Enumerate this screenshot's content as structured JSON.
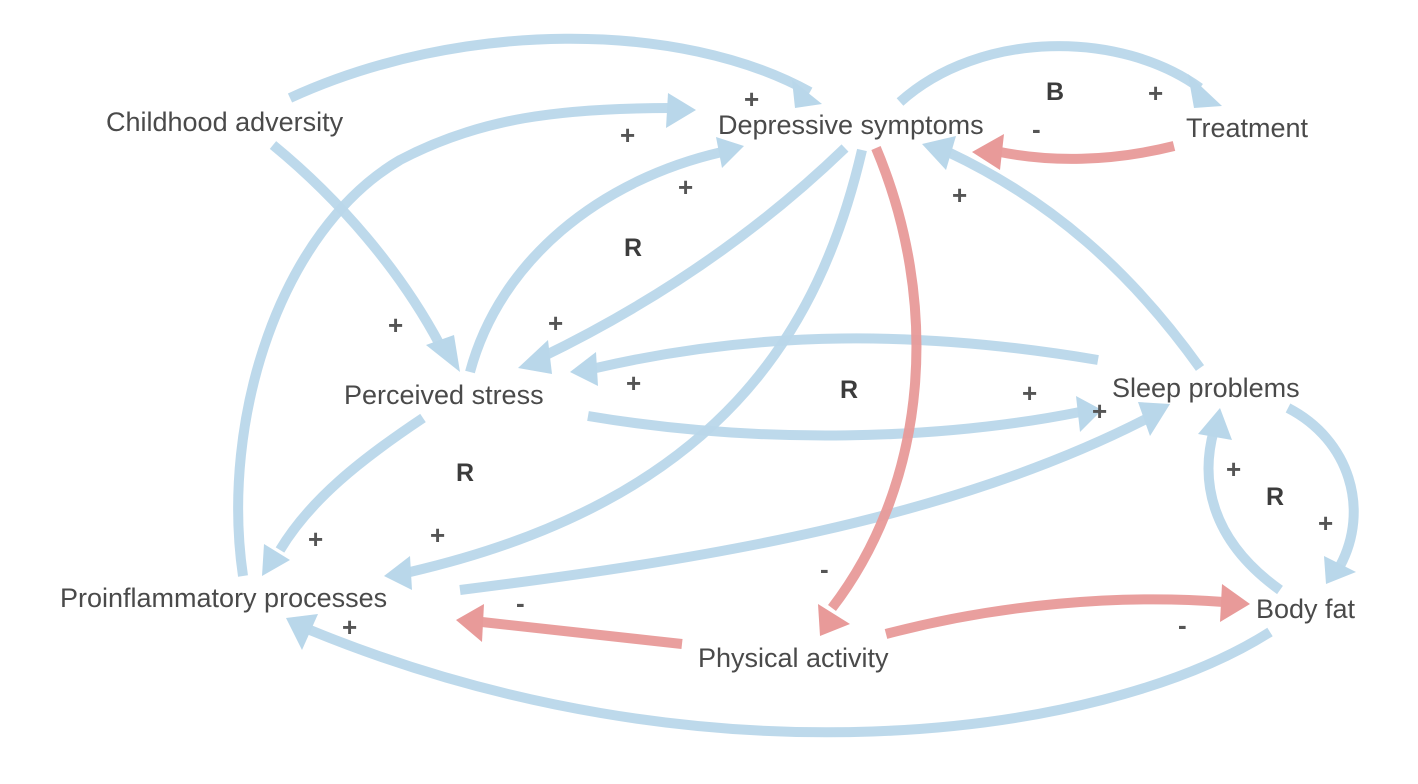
{
  "colors": {
    "positive": "#b9d7ea",
    "negative": "#e89a99"
  },
  "nodes": {
    "childhood_adversity": "Childhood adversity",
    "depressive_symptoms": "Depressive symptoms",
    "treatment": "Treatment",
    "perceived_stress": "Perceived stress",
    "sleep_problems": "Sleep problems",
    "proinflammatory_processes": "Proinflammatory processes",
    "physical_activity": "Physical activity",
    "body_fat": "Body fat"
  },
  "edges": [
    {
      "from": "Childhood adversity",
      "to": "Depressive symptoms",
      "polarity": "positive",
      "sign": "+"
    },
    {
      "from": "Childhood adversity",
      "to": "Perceived stress",
      "polarity": "positive",
      "sign": "+"
    },
    {
      "from": "Proinflammatory processes",
      "to": "Depressive symptoms",
      "polarity": "positive",
      "sign": "+"
    },
    {
      "from": "Perceived stress",
      "to": "Depressive symptoms",
      "polarity": "positive",
      "sign": "+"
    },
    {
      "from": "Depressive symptoms",
      "to": "Perceived stress",
      "polarity": "positive",
      "sign": "+"
    },
    {
      "from": "Depressive symptoms",
      "to": "Proinflammatory processes",
      "polarity": "positive",
      "sign": "+"
    },
    {
      "from": "Depressive symptoms",
      "to": "Treatment",
      "polarity": "positive",
      "sign": "+"
    },
    {
      "from": "Treatment",
      "to": "Depressive symptoms",
      "polarity": "negative",
      "sign": "-"
    },
    {
      "from": "Depressive symptoms",
      "to": "Physical activity",
      "polarity": "negative",
      "sign": "-"
    },
    {
      "from": "Sleep problems",
      "to": "Depressive symptoms",
      "polarity": "positive",
      "sign": "+"
    },
    {
      "from": "Sleep problems",
      "to": "Perceived stress",
      "polarity": "positive",
      "sign": "+"
    },
    {
      "from": "Perceived stress",
      "to": "Sleep problems",
      "polarity": "positive",
      "sign": "+"
    },
    {
      "from": "Perceived stress",
      "to": "Proinflammatory processes",
      "polarity": "positive",
      "sign": "+"
    },
    {
      "from": "Proinflammatory processes",
      "to": "Sleep problems",
      "polarity": "positive",
      "sign": "+"
    },
    {
      "from": "Physical activity",
      "to": "Proinflammatory processes",
      "polarity": "negative",
      "sign": "-"
    },
    {
      "from": "Physical activity",
      "to": "Body fat",
      "polarity": "negative",
      "sign": "-"
    },
    {
      "from": "Sleep problems",
      "to": "Body fat",
      "polarity": "positive",
      "sign": "+"
    },
    {
      "from": "Body fat",
      "to": "Sleep problems",
      "polarity": "positive",
      "sign": "+"
    },
    {
      "from": "Body fat",
      "to": "Proinflammatory processes",
      "polarity": "positive",
      "sign": "+"
    }
  ],
  "loop_labels": [
    "B",
    "R",
    "R",
    "R",
    "R"
  ]
}
